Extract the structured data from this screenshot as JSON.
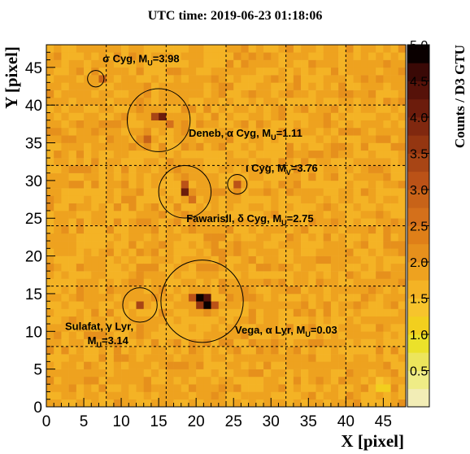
{
  "chart_data": {
    "type": "heatmap",
    "title": "UTC time: 2019-06-23 01:18:06",
    "xlabel": "X [pixel]",
    "ylabel": "Y [pixel]",
    "xlim": [
      0,
      48
    ],
    "ylim": [
      0,
      48
    ],
    "x_ticks": [
      "0",
      "5",
      "10",
      "15",
      "20",
      "25",
      "30",
      "35",
      "40",
      "45"
    ],
    "y_ticks": [
      "0",
      "5",
      "10",
      "15",
      "20",
      "25",
      "30",
      "35",
      "40",
      "45"
    ],
    "grid_lines": {
      "x": [
        8,
        16,
        24,
        32,
        40
      ],
      "y": [
        8,
        16,
        24,
        32,
        40
      ],
      "style": "dashed"
    },
    "colorbar": {
      "title": "Counts / D3 GTU",
      "range": [
        0,
        5
      ],
      "ticks": [
        "0.5",
        "1.0",
        "1.5",
        "2.0",
        "2.5",
        "3.0",
        "3.5",
        "4.0",
        "4.5",
        "5.0"
      ],
      "colors": [
        "#f2edb6",
        "#efec86",
        "#ece55c",
        "#ebe12a",
        "#f2cf1e",
        "#f7c42c",
        "#f4b325",
        "#eea21f",
        "#e6901c",
        "#df7f18",
        "#d4701b",
        "#c86318",
        "#bb5217",
        "#a84515",
        "#943611",
        "#80280f",
        "#6c1c0c",
        "#561209",
        "#3a0906",
        "#0a0000"
      ]
    },
    "background_level": 1.8,
    "hotspots": [
      {
        "x": 20,
        "y": 14,
        "value": 5.0
      },
      {
        "x": 21,
        "y": 13,
        "value": 4.8
      },
      {
        "x": 21,
        "y": 14,
        "value": 4.4
      },
      {
        "x": 20,
        "y": 13,
        "value": 3.6
      },
      {
        "x": 19,
        "y": 14,
        "value": 3.0
      },
      {
        "x": 22,
        "y": 13,
        "value": 3.2
      },
      {
        "x": 15,
        "y": 38,
        "value": 4.2
      },
      {
        "x": 14,
        "y": 38,
        "value": 3.4
      },
      {
        "x": 18,
        "y": 28,
        "value": 4.0
      },
      {
        "x": 18,
        "y": 29,
        "value": 3.0
      },
      {
        "x": 12,
        "y": 13,
        "value": 3.4
      },
      {
        "x": 25,
        "y": 29,
        "value": 3.2
      },
      {
        "x": 7,
        "y": 43,
        "value": 2.9
      },
      {
        "x": 13,
        "y": 35,
        "value": 2.8
      },
      {
        "x": 16,
        "y": 37,
        "value": 2.7
      },
      {
        "x": 19,
        "y": 27,
        "value": 2.7
      },
      {
        "x": 44,
        "y": 2,
        "value": 1.1
      },
      {
        "x": 45,
        "y": 2,
        "value": 1.2
      },
      {
        "x": 44,
        "y": 3,
        "value": 1.3
      }
    ],
    "annotations": [
      {
        "id": "sigma-cyg",
        "x": 6.6,
        "y": 43.5,
        "radius": 1.1,
        "text": "σ Cyg, M",
        "sub": "U",
        "suffix": "=3.98",
        "tx": 7.5,
        "ty": 45.7
      },
      {
        "id": "deneb",
        "x": 15,
        "y": 38,
        "radius": 4.2,
        "text": "Deneb, α Cyg, M",
        "sub": "U",
        "suffix": "=1.11",
        "tx": 19,
        "ty": 35.8
      },
      {
        "id": "iota-cyg",
        "x": 25.5,
        "y": 29.5,
        "radius": 1.3,
        "text": "ι Cyg, M",
        "sub": "V",
        "suffix": "=3.76",
        "tx": 26.6,
        "ty": 31.2
      },
      {
        "id": "fawaris",
        "x": 18.5,
        "y": 28.5,
        "radius": 3.5,
        "text": "Fawarisll, δ Cyg, M",
        "sub": "U",
        "suffix": "=2.75",
        "tx": 18.7,
        "ty": 24.5
      },
      {
        "id": "sulafat",
        "x": 12.5,
        "y": 13.5,
        "radius": 2.3,
        "text": "Sulafat, γ Lyr,",
        "sub": "",
        "suffix": "",
        "tx": 2.5,
        "ty": 10.2
      },
      {
        "id": "sulafat-mag",
        "x": null,
        "y": null,
        "radius": 0,
        "text": "M",
        "sub": "U",
        "suffix": "=3.14",
        "tx": 5.5,
        "ty": 8.3
      },
      {
        "id": "vega",
        "x": 20.8,
        "y": 14,
        "radius": 5.5,
        "text": "Vega, α Lyr, M",
        "sub": "U",
        "suffix": "=0.03",
        "tx": 25.2,
        "ty": 9.7
      }
    ]
  }
}
